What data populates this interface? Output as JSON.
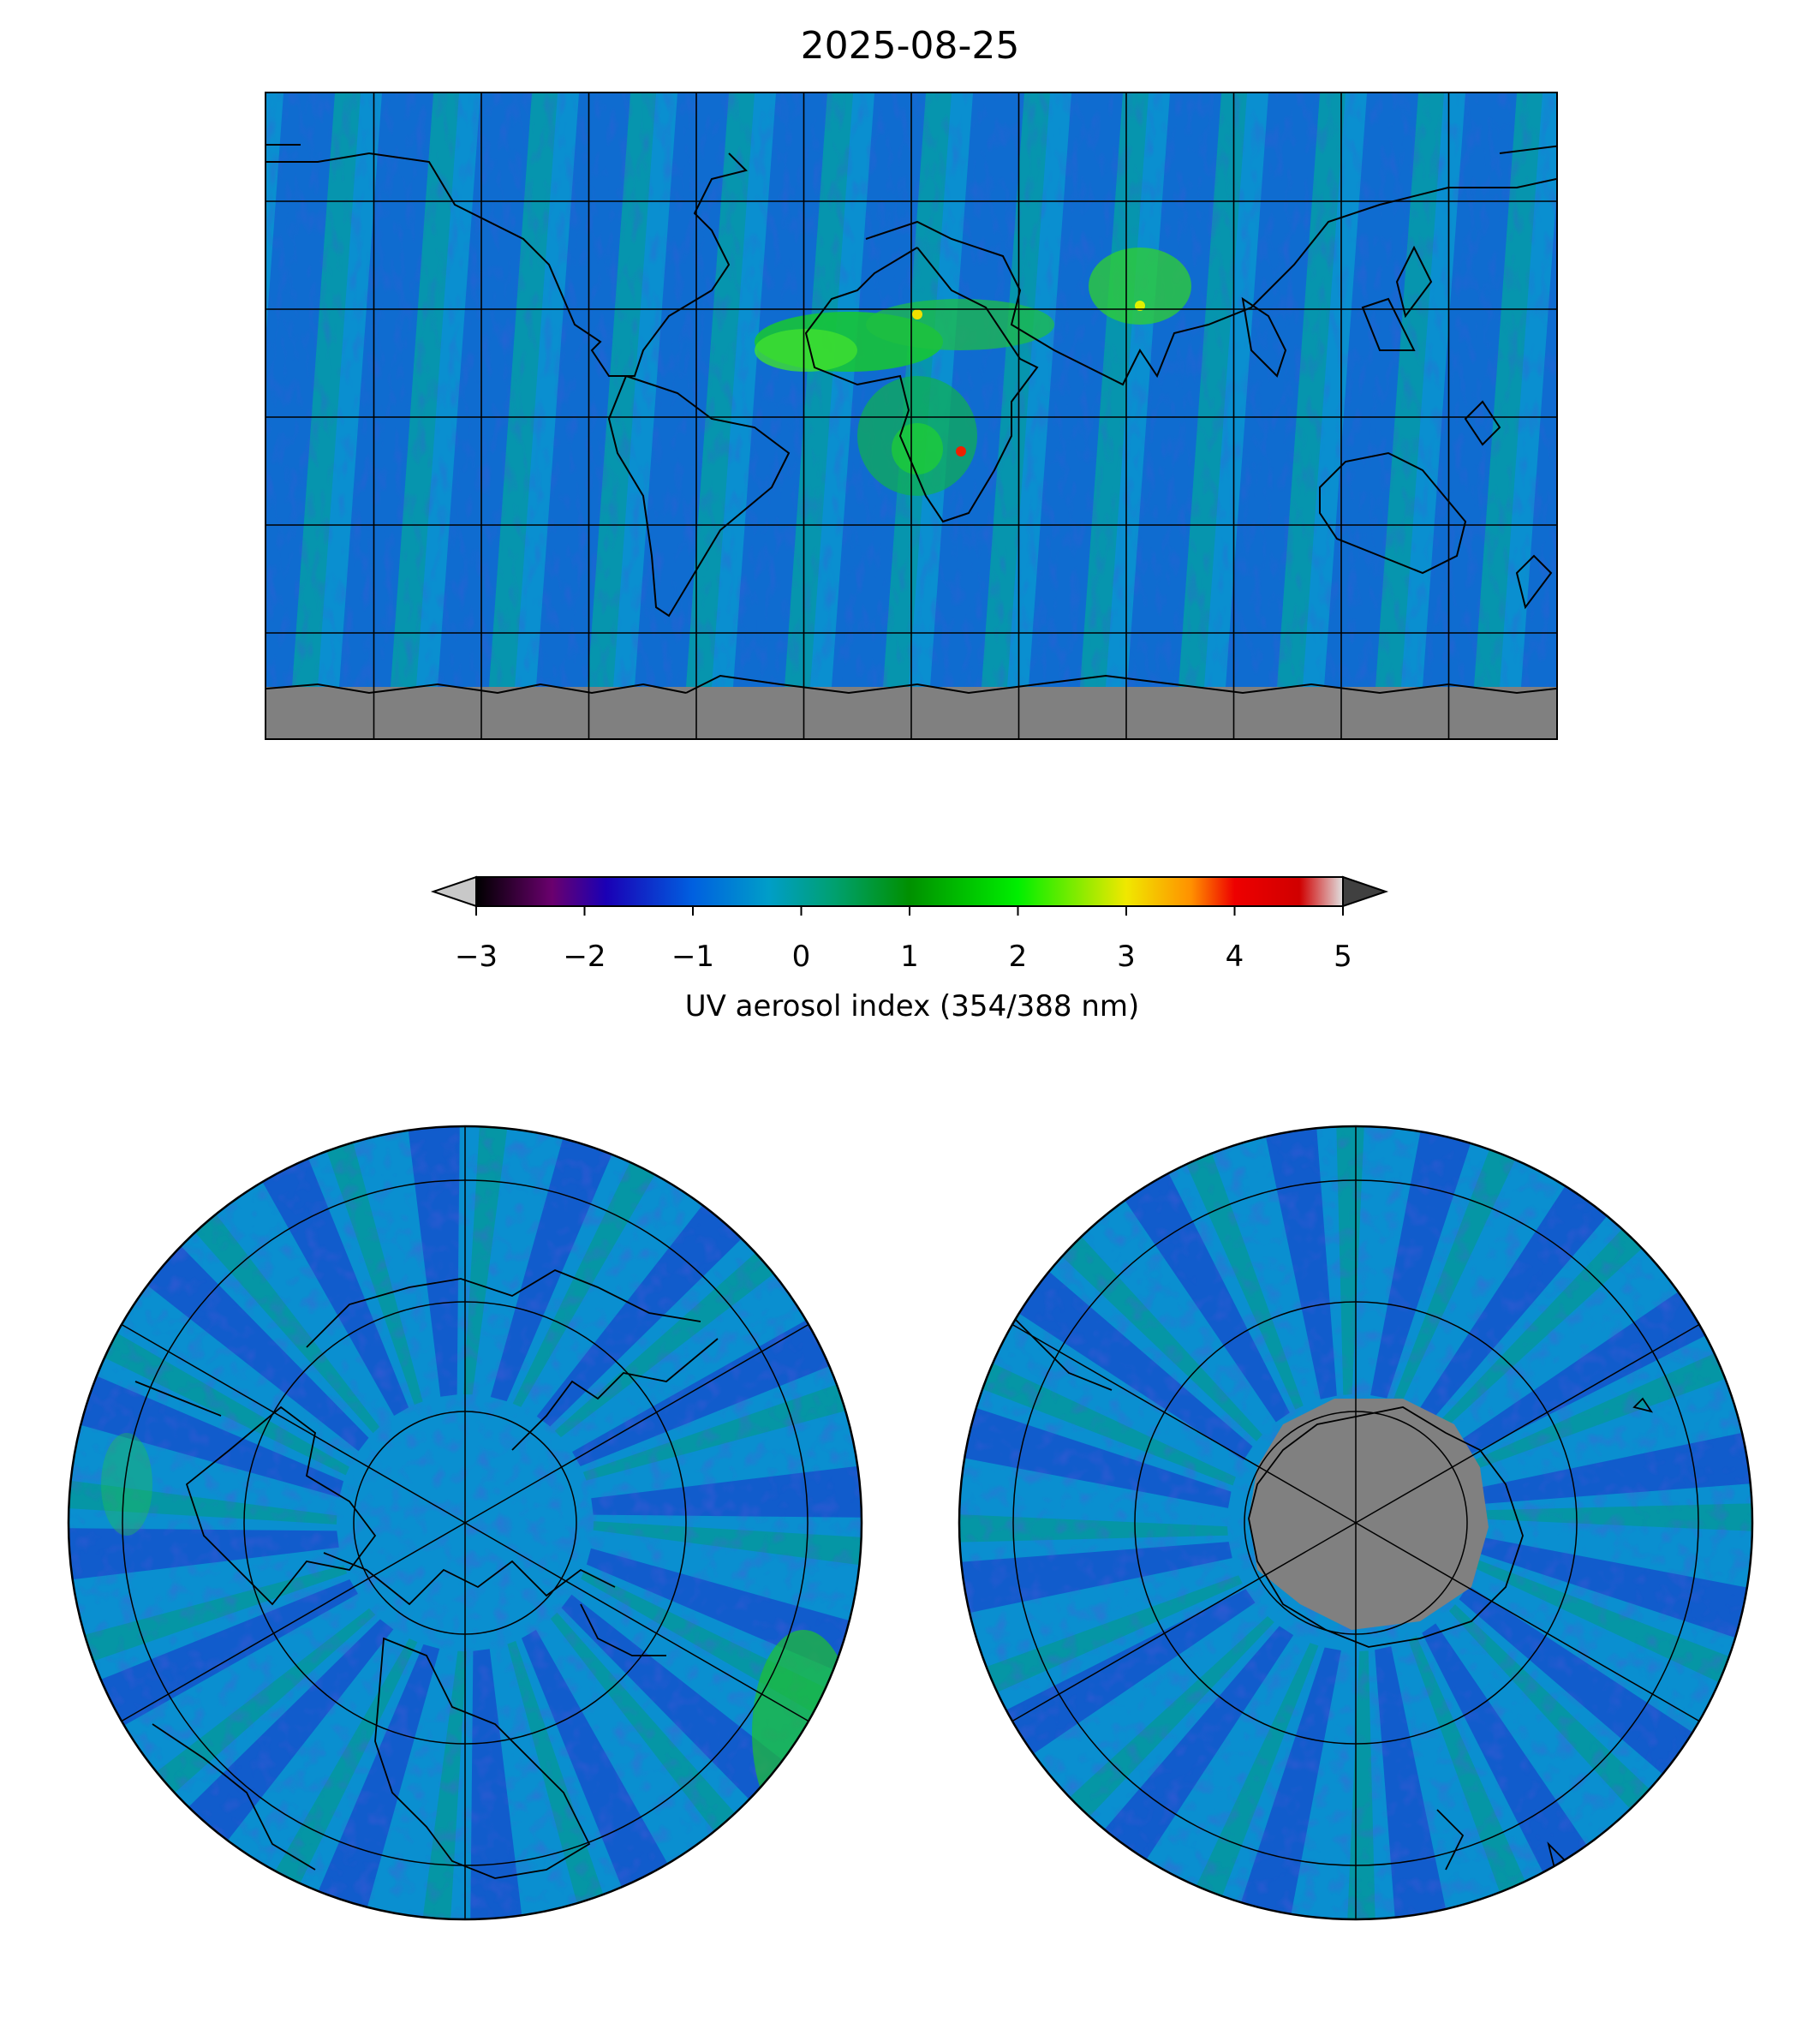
{
  "title": "2025-08-25",
  "colorbar": {
    "label": "UV aerosol index (354/388 nm)",
    "ticks": [
      "−3",
      "−2",
      "−1",
      "0",
      "1",
      "2",
      "3",
      "4",
      "5"
    ],
    "min": -3,
    "max": 5,
    "extend": "both",
    "under_color": "#c8c8c8",
    "over_color": "#404040",
    "stops": [
      {
        "v": -3.0,
        "c": "#000000"
      },
      {
        "v": -2.3,
        "c": "#6a006e"
      },
      {
        "v": -1.8,
        "c": "#1a00b5"
      },
      {
        "v": -1.0,
        "c": "#0060e0"
      },
      {
        "v": -0.3,
        "c": "#009ec8"
      },
      {
        "v": 0.3,
        "c": "#00a070"
      },
      {
        "v": 1.0,
        "c": "#009000"
      },
      {
        "v": 2.0,
        "c": "#00ef00"
      },
      {
        "v": 3.0,
        "c": "#f0e800"
      },
      {
        "v": 3.6,
        "c": "#ff9000"
      },
      {
        "v": 4.0,
        "c": "#ee0000"
      },
      {
        "v": 4.6,
        "c": "#d00000"
      },
      {
        "v": 5.0,
        "c": "#e0e0e0"
      }
    ]
  },
  "colors": {
    "ocean_background": "#0090c8",
    "no_data": "#808080",
    "coastline": "#000000",
    "gridline": "#000000"
  },
  "maps": {
    "world": {
      "projection": "equirectangular"
    },
    "north": {
      "projection": "north-polar-stereographic"
    },
    "south": {
      "projection": "south-polar-stereographic"
    }
  }
}
